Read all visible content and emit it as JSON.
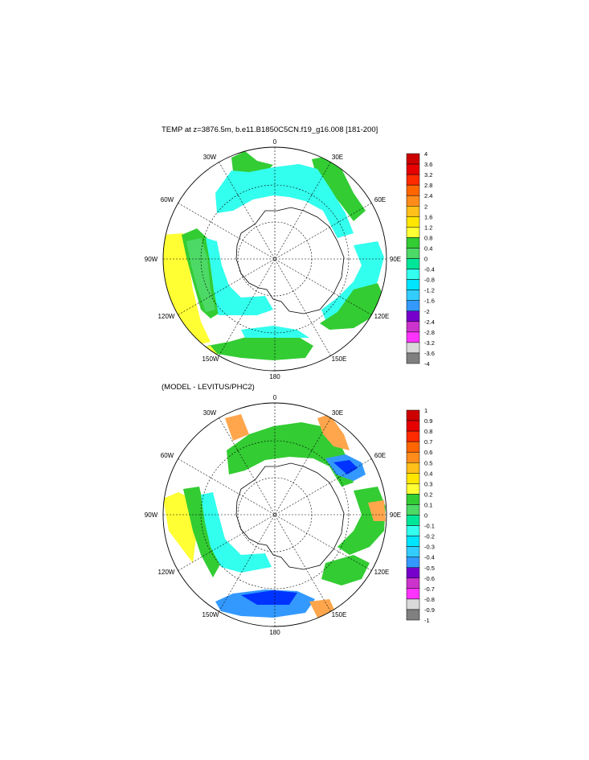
{
  "panels": [
    {
      "title": "TEMP at z=3876.5m, b.e11.B1850C5CN.f19_g16.008 [181-200]",
      "colorbar": {
        "labels": [
          "4",
          "3.6",
          "3.2",
          "2.8",
          "2.4",
          "2",
          "1.6",
          "1.2",
          "0.8",
          "0.4",
          "0",
          "-0.4",
          "-0.8",
          "-1.2",
          "-1.6",
          "-2",
          "-2.4",
          "-2.8",
          "-3.2",
          "-3.6",
          "-4"
        ]
      }
    },
    {
      "title": "(MODEL - LEVITUS/PHC2)",
      "colorbar": {
        "labels": [
          "1",
          "0.9",
          "0.8",
          "0.7",
          "0.6",
          "0.5",
          "0.4",
          "0.3",
          "0.2",
          "0.1",
          "0",
          "-0.1",
          "-0.2",
          "-0.3",
          "-0.4",
          "-0.5",
          "-0.6",
          "-0.7",
          "-0.8",
          "-0.9",
          "-1"
        ]
      }
    }
  ],
  "map_labels": {
    "lon_0": "0",
    "lon_30e": "30E",
    "lon_60e": "60E",
    "lon_90e": "90E",
    "lon_120e": "120E",
    "lon_150e": "150E",
    "lon_180": "180",
    "lon_150w": "150W",
    "lon_120w": "120W",
    "lon_90w": "90W",
    "lon_60w": "60W",
    "lon_30w": "30W"
  },
  "colors": {
    "scale": [
      "#cc0000",
      "#e60000",
      "#ff2a00",
      "#ff6600",
      "#ff8c1a",
      "#ffa64d",
      "#ffc01a",
      "#ffe600",
      "#ffff33",
      "#33cc33",
      "#4dd966",
      "#00e699",
      "#33ffee",
      "#00e5ff",
      "#33ccff",
      "#3399ff",
      "#0033ff",
      "#7700cc",
      "#cc33cc",
      "#ff33ff",
      "#d9d9d9",
      "#808080"
    ]
  }
}
